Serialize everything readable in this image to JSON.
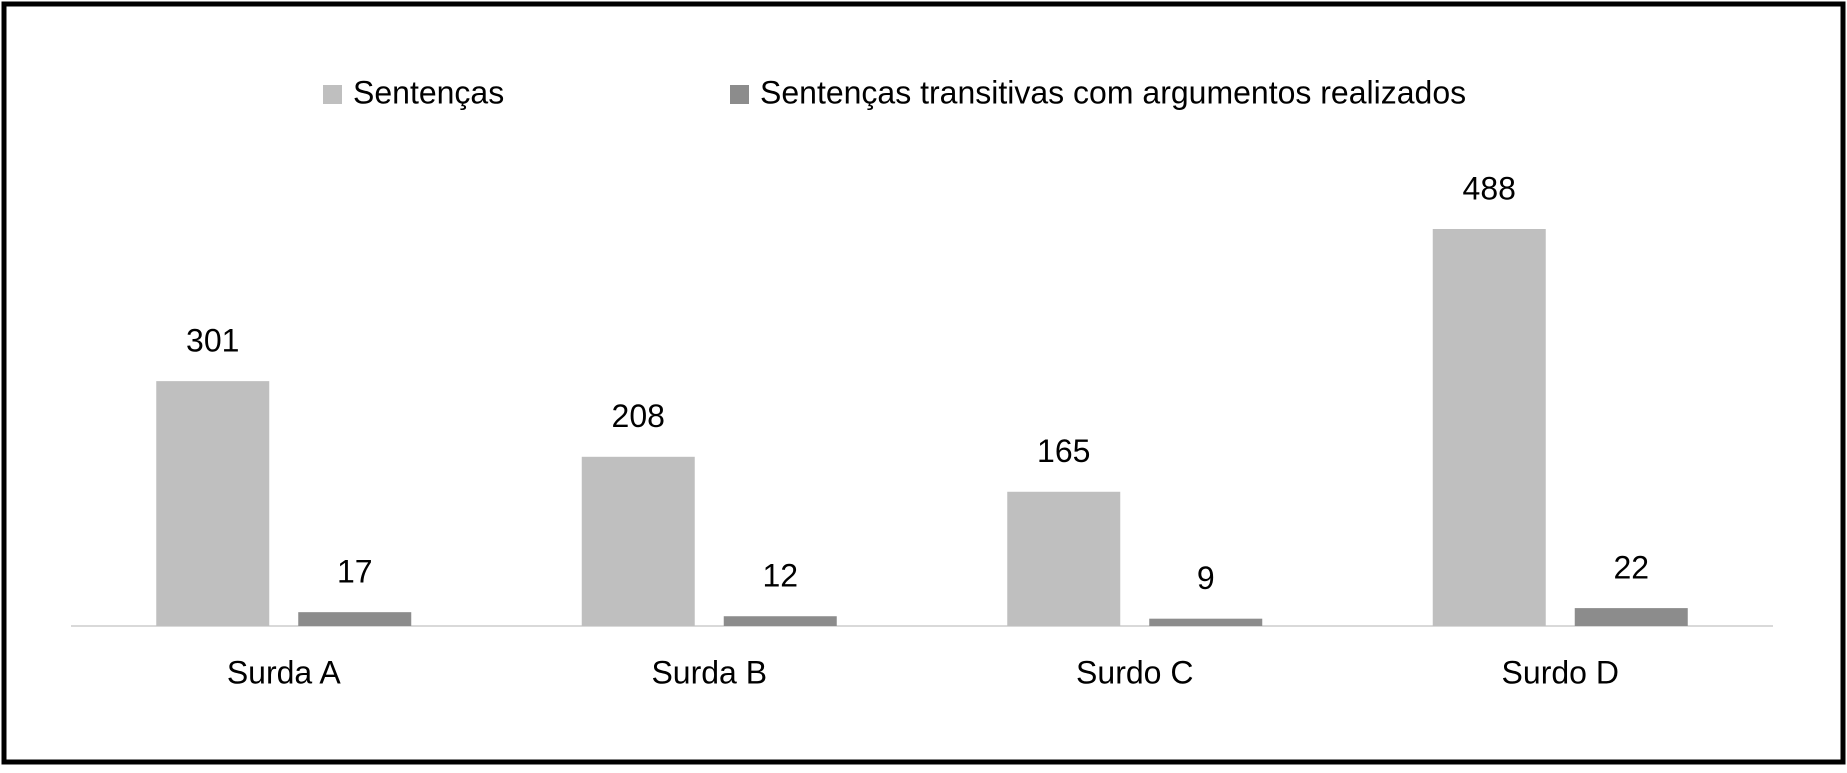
{
  "chart_data": {
    "type": "bar",
    "categories": [
      "Surda A",
      "Surda B",
      "Surdo C",
      "Surdo D"
    ],
    "series": [
      {
        "name": "Sentenças",
        "color": "#bfbfbf",
        "values": [
          301,
          208,
          165,
          488
        ]
      },
      {
        "name": "Sentenças transitivas com argumentos realizados",
        "color": "#8c8c8c",
        "values": [
          17,
          12,
          9,
          22
        ]
      }
    ],
    "legend": "top",
    "grid": false
  }
}
